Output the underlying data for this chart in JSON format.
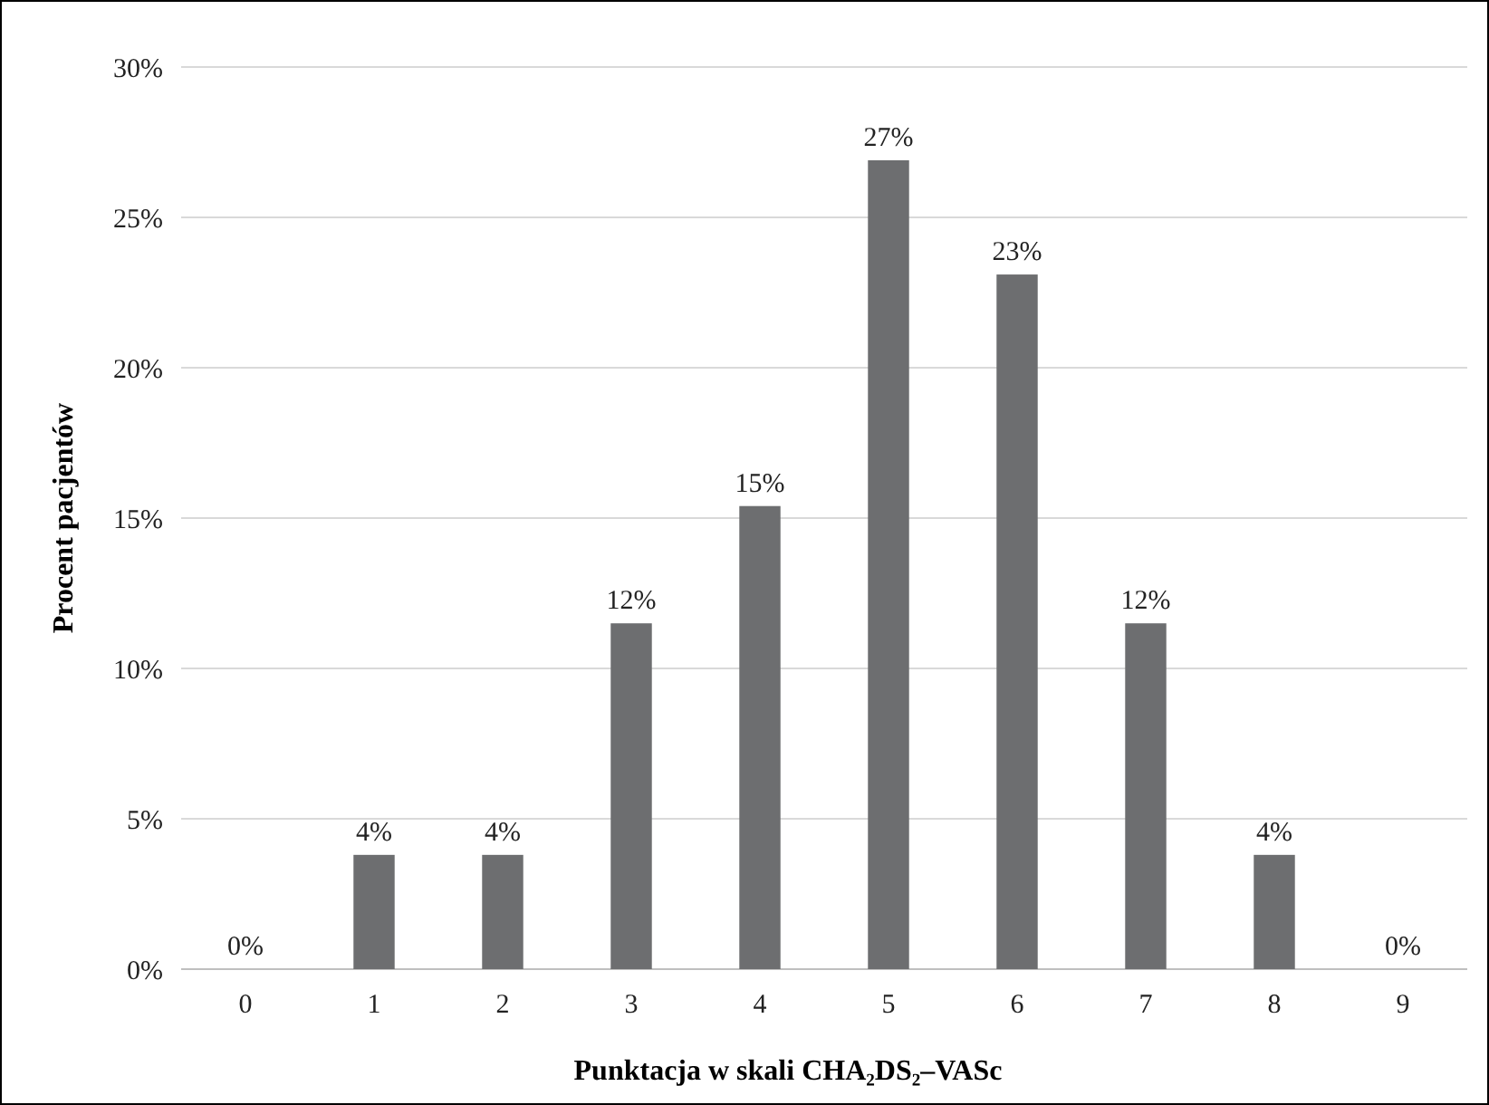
{
  "chart_data": {
    "type": "bar",
    "xlabel": "Punktacja w skali CHA₂DS₂–VASc",
    "ylabel": "Procent pacjentów",
    "categories": [
      "0",
      "1",
      "2",
      "3",
      "4",
      "5",
      "6",
      "7",
      "8",
      "9"
    ],
    "values": [
      0,
      3.8,
      3.8,
      11.5,
      15.4,
      26.9,
      23.1,
      11.5,
      3.8,
      0
    ],
    "value_labels": [
      "0%",
      "4%",
      "4%",
      "12%",
      "15%",
      "27%",
      "23%",
      "12%",
      "4%",
      "0%"
    ],
    "color": "#6d6e70",
    "ylim": [
      0,
      30
    ],
    "yticks": [
      {
        "value": 0,
        "label": "0%"
      },
      {
        "value": 5,
        "label": "5%"
      },
      {
        "value": 10,
        "label": "10%"
      },
      {
        "value": 15,
        "label": "15%"
      },
      {
        "value": 20,
        "label": "20%"
      },
      {
        "value": 25,
        "label": "25%"
      },
      {
        "value": 30,
        "label": "30%"
      }
    ],
    "grid": "y"
  }
}
